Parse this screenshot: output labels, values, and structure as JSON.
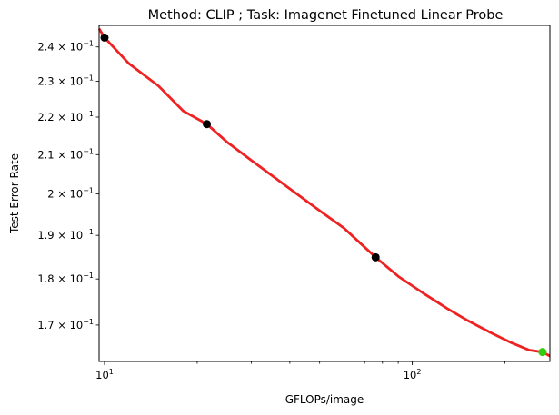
{
  "chart_data": {
    "type": "scatter",
    "title": "Method: CLIP ; Task: Imagenet Finetuned Linear Probe",
    "xlabel": "GFLOPs/image",
    "ylabel": "Test Error Rate",
    "x_scale": "log",
    "y_scale": "log",
    "xlim": [
      9.6,
      280
    ],
    "ylim": [
      0.1625,
      0.2465
    ],
    "x_ticks": [
      {
        "value": 10,
        "base": "10",
        "exp": "1"
      },
      {
        "value": 100,
        "base": "10",
        "exp": "2"
      }
    ],
    "x_minor_ticks": [
      20,
      30,
      40,
      50,
      60,
      70,
      80,
      90,
      200
    ],
    "y_ticks": [
      {
        "value": 0.24,
        "mantissa": "2.4",
        "base": "10",
        "exp": "−1"
      },
      {
        "value": 0.23,
        "mantissa": "2.3",
        "base": "10",
        "exp": "−1"
      },
      {
        "value": 0.22,
        "mantissa": "2.2",
        "base": "10",
        "exp": "−1"
      },
      {
        "value": 0.21,
        "mantissa": "2.1",
        "base": "10",
        "exp": "−1"
      },
      {
        "value": 0.2,
        "mantissa": "2",
        "base": "10",
        "exp": "−1"
      },
      {
        "value": 0.19,
        "mantissa": "1.9",
        "base": "10",
        "exp": "−1"
      },
      {
        "value": 0.18,
        "mantissa": "1.8",
        "base": "10",
        "exp": "−1"
      },
      {
        "value": 0.17,
        "mantissa": "1.7",
        "base": "10",
        "exp": "−1"
      }
    ],
    "series": [
      {
        "kind": "points",
        "color": "#000000",
        "x": [
          10,
          21.5,
          76
        ],
        "y": [
          0.2428,
          0.2181,
          0.1849
        ]
      },
      {
        "kind": "points",
        "color": "#33cc11",
        "x": [
          265
        ],
        "y": [
          0.1644
        ]
      },
      {
        "kind": "fit-curve",
        "color": "#ee2222",
        "x": [
          9.6,
          10,
          12,
          15,
          18,
          21.5,
          25,
          30,
          35,
          40,
          50,
          60,
          76,
          90,
          110,
          130,
          150,
          180,
          210,
          240,
          265,
          280
        ],
        "y": [
          0.2455,
          0.2428,
          0.2351,
          0.2286,
          0.2217,
          0.2181,
          0.2133,
          0.2085,
          0.2046,
          0.2013,
          0.1959,
          0.1917,
          0.1849,
          0.1806,
          0.1766,
          0.1735,
          0.1711,
          0.1684,
          0.1663,
          0.1648,
          0.1644,
          0.1636
        ]
      }
    ]
  }
}
